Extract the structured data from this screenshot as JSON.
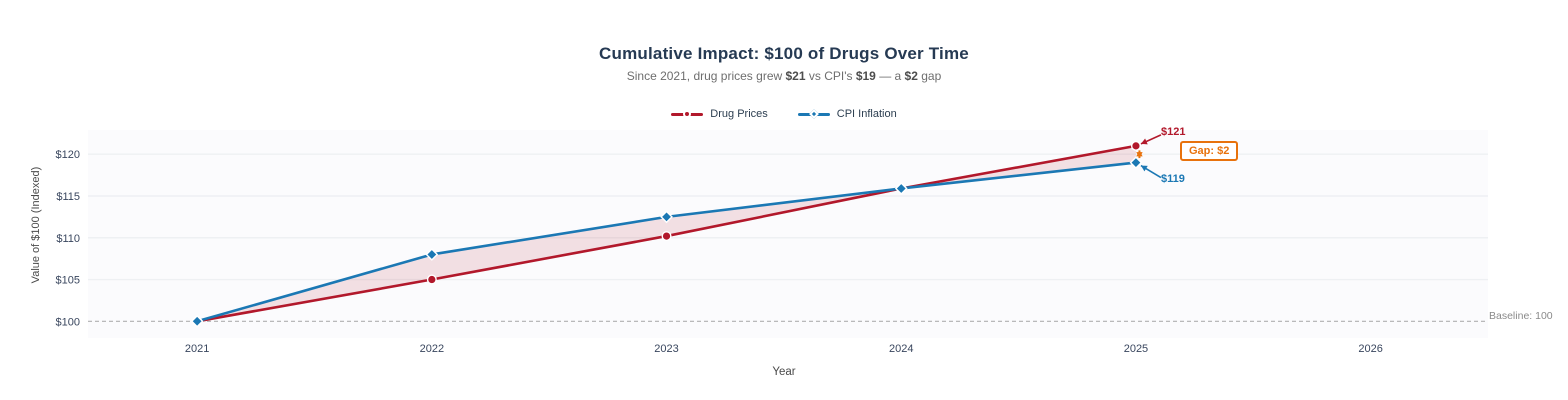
{
  "colors": {
    "drug": "#b2182b",
    "cpi": "#1b78b4",
    "gap": "#e8720c",
    "title": "#263a53",
    "tick": "#39465e",
    "axis_label": "#4a4a4a",
    "grid": "#eef0f3",
    "plot_background": "#fbfbfd",
    "baseline_line": "#b0b0b0",
    "fill_between": "rgba(178,24,43,0.12)"
  },
  "subtitle": {
    "s0": "Since 2021, drug prices grew ",
    "s1": "$21",
    "s2": " vs CPI's ",
    "s3": "$19",
    "s4": " — a ",
    "s5": "$2",
    "s6": " gap"
  },
  "chart_data": {
    "type": "line",
    "title": "Cumulative Impact: $100 of Drugs Over Time",
    "subtitle": "Since 2021, drug prices grew $21 vs CPI's $19 — a $2 gap",
    "xlabel": "Year",
    "ylabel": "Value of $100 (Indexed)",
    "x": [
      2021,
      2022,
      2023,
      2024,
      2025
    ],
    "series": [
      {
        "name": "Drug Prices",
        "color": "#b2182b",
        "marker": "circle",
        "values": [
          100,
          105,
          110.2,
          115.9,
          121
        ]
      },
      {
        "name": "CPI Inflation",
        "color": "#1b78b4",
        "marker": "diamond",
        "values": [
          100,
          108,
          112.5,
          115.9,
          119
        ]
      }
    ],
    "fill_between_series": true,
    "xticks": [
      2021,
      2022,
      2023,
      2024,
      2025,
      2026
    ],
    "xtick_labels": [
      "2021",
      "2022",
      "2023",
      "2024",
      "2025",
      "2026"
    ],
    "yticks": [
      100,
      105,
      110,
      115,
      120
    ],
    "ytick_labels": [
      "$100",
      "$105",
      "$110",
      "$115",
      "$120"
    ],
    "xlim": [
      2020.535,
      2026.5
    ],
    "ylim": [
      98,
      122.9
    ],
    "grid": "horizontal",
    "legend_position": "top-center",
    "baseline": {
      "value": 100,
      "label": "Baseline: 100",
      "style": "dashed"
    },
    "annotations": {
      "drug_end": "$121",
      "cpi_end": "$119",
      "gap": "Gap: $2"
    }
  }
}
